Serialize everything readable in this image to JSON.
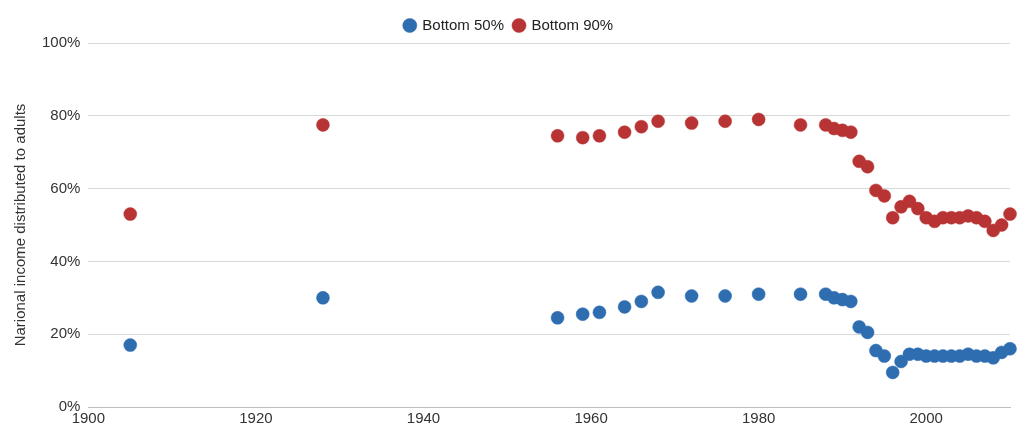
{
  "chart_data": {
    "type": "scatter",
    "ylabel": "Narional income distributed to adults",
    "x": [
      1905,
      1928,
      1956,
      1959,
      1961,
      1964,
      1966,
      1968,
      1972,
      1976,
      1980,
      1985,
      1988,
      1989,
      1990,
      1991,
      1992,
      1993,
      1994,
      1995,
      1996,
      1997,
      1998,
      1999,
      2000,
      2001,
      2002,
      2003,
      2004,
      2005,
      2006,
      2007,
      2008,
      2009,
      2010
    ],
    "series": [
      {
        "name": "Bottom 50%",
        "color": "#2f6db1",
        "values": [
          17,
          30,
          24.5,
          25.5,
          26,
          27.5,
          29,
          31.5,
          30.5,
          30.5,
          31,
          31,
          31,
          30,
          29.5,
          29,
          22,
          20.5,
          15.5,
          14,
          9.5,
          12.5,
          14.5,
          14.5,
          14,
          14,
          14,
          14,
          14,
          14.5,
          14,
          14,
          13.5,
          15,
          16
        ]
      },
      {
        "name": "Bottom 90%",
        "color": "#b83434",
        "values": [
          53,
          77.5,
          74.5,
          74,
          74.5,
          75.5,
          77,
          78.5,
          78,
          78.5,
          79,
          77.5,
          77.5,
          76.5,
          76,
          75.5,
          67.5,
          66,
          59.5,
          58,
          52,
          55,
          56.5,
          54.5,
          52,
          51,
          52,
          52,
          52,
          52.5,
          52,
          51,
          48.5,
          50,
          53
        ]
      }
    ],
    "xlim": [
      1900,
      2010
    ],
    "xticks": [
      1900,
      1920,
      1940,
      1960,
      1980,
      2000
    ],
    "ylim": [
      0,
      100
    ],
    "yticks": [
      {
        "value": 0,
        "label": "0%"
      },
      {
        "value": 20,
        "label": "20%"
      },
      {
        "value": 40,
        "label": "40%"
      },
      {
        "value": 60,
        "label": "60%"
      },
      {
        "value": 80,
        "label": "80%"
      },
      {
        "value": 100,
        "label": "100%"
      }
    ],
    "grid": "y",
    "legend": "top",
    "marker": "circle"
  }
}
